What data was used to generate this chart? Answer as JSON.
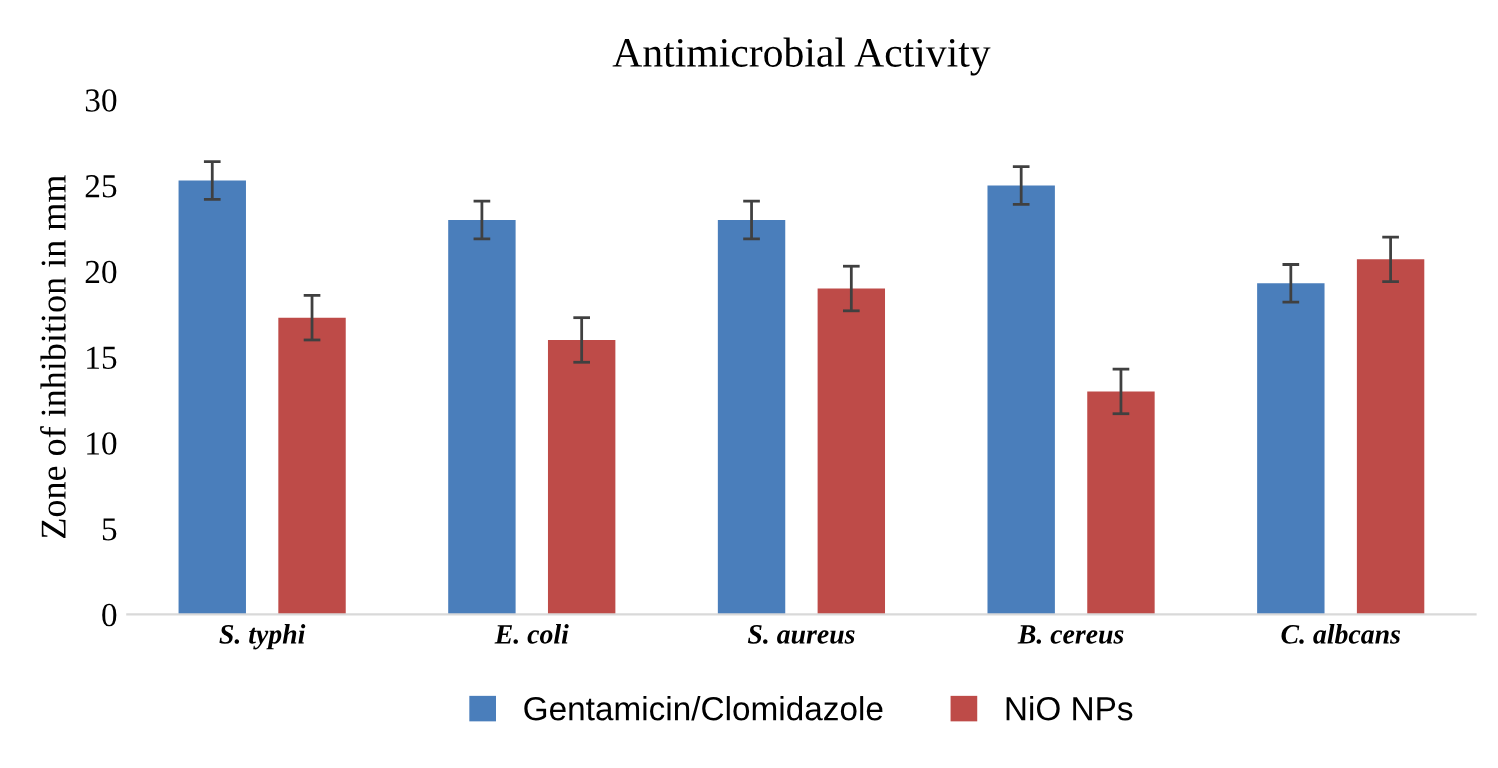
{
  "chart_data": {
    "type": "bar",
    "title": "Antimicrobial Activity",
    "ylabel": "Zone of inhibition in mm",
    "categories": [
      "S. typhi",
      "E. coli",
      "S. aureus",
      "B. cereus",
      "C. albcans"
    ],
    "series": [
      {
        "name": "Gentamicin/Clomidazole",
        "color": "#4a7ebb",
        "values": [
          25.3,
          23,
          23,
          25,
          19.3
        ],
        "errors": [
          1.1,
          1.1,
          1.1,
          1.1,
          1.1
        ]
      },
      {
        "name": "NiO NPs",
        "color": "#be4b48",
        "values": [
          17.3,
          16,
          19,
          13,
          20.7
        ],
        "errors": [
          1.3,
          1.3,
          1.3,
          1.3,
          1.3
        ]
      }
    ],
    "ylim": [
      0,
      30
    ],
    "yticks": [
      0,
      5,
      10,
      15,
      20,
      25,
      30
    ],
    "grid": false,
    "legend": "bottom"
  }
}
